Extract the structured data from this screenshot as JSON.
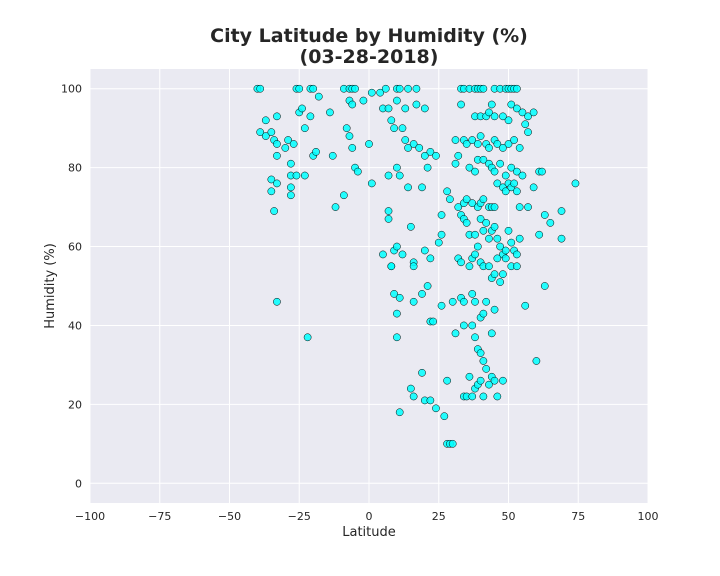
{
  "chart_data": {
    "type": "scatter",
    "title": "City Latitude by Humidity (%)",
    "subtitle": "(03-28-2018)",
    "xlabel": "Latitude",
    "ylabel": "Humidity (%)",
    "xlim": [
      -100,
      100
    ],
    "ylim": [
      -5,
      105
    ],
    "xticks": [
      -100,
      -75,
      -50,
      -25,
      0,
      25,
      50,
      75,
      100
    ],
    "yticks": [
      0,
      20,
      40,
      60,
      80,
      100
    ],
    "xtick_labels": [
      "−100",
      "−75",
      "−50",
      "−25",
      "0",
      "25",
      "50",
      "75",
      "100"
    ],
    "ytick_labels": [
      "0",
      "20",
      "40",
      "60",
      "80",
      "100"
    ],
    "grid": true,
    "background": "#eaeaf2",
    "point_color": "#00ffff",
    "point_edge_color": "#000000",
    "points": [
      [
        -40,
        100
      ],
      [
        -39,
        100
      ],
      [
        -26,
        100
      ],
      [
        -25,
        100
      ],
      [
        -21,
        100
      ],
      [
        -20,
        100
      ],
      [
        -9,
        100
      ],
      [
        -7,
        100
      ],
      [
        -6,
        100
      ],
      [
        -5,
        100
      ],
      [
        1,
        99
      ],
      [
        4,
        99
      ],
      [
        6,
        100
      ],
      [
        10,
        100
      ],
      [
        11,
        100
      ],
      [
        14,
        100
      ],
      [
        17,
        100
      ],
      [
        33,
        100
      ],
      [
        34,
        100
      ],
      [
        36,
        100
      ],
      [
        38,
        100
      ],
      [
        39,
        100
      ],
      [
        40,
        100
      ],
      [
        41,
        100
      ],
      [
        45,
        100
      ],
      [
        47,
        100
      ],
      [
        49,
        100
      ],
      [
        50,
        100
      ],
      [
        51,
        100
      ],
      [
        52,
        100
      ],
      [
        53,
        100
      ],
      [
        -37,
        92
      ],
      [
        -33,
        93
      ],
      [
        -25,
        94
      ],
      [
        -24,
        95
      ],
      [
        -21,
        93
      ],
      [
        -18,
        98
      ],
      [
        -14,
        94
      ],
      [
        -7,
        97
      ],
      [
        -6,
        96
      ],
      [
        -2,
        97
      ],
      [
        5,
        95
      ],
      [
        7,
        95
      ],
      [
        8,
        92
      ],
      [
        10,
        97
      ],
      [
        13,
        95
      ],
      [
        17,
        96
      ],
      [
        20,
        95
      ],
      [
        38,
        93
      ],
      [
        40,
        93
      ],
      [
        42,
        93
      ],
      [
        43,
        94
      ],
      [
        45,
        93
      ],
      [
        48,
        93
      ],
      [
        50,
        92
      ],
      [
        51,
        96
      ],
      [
        53,
        95
      ],
      [
        55,
        94
      ],
      [
        57,
        93
      ],
      [
        59,
        94
      ],
      [
        33,
        96
      ],
      [
        44,
        96
      ],
      [
        -39,
        89
      ],
      [
        -37,
        88
      ],
      [
        -35,
        89
      ],
      [
        -34,
        87
      ],
      [
        -33,
        86
      ],
      [
        -30,
        85
      ],
      [
        -29,
        87
      ],
      [
        -28,
        81
      ],
      [
        -27,
        86
      ],
      [
        -23,
        90
      ],
      [
        -20,
        83
      ],
      [
        -19,
        84
      ],
      [
        -13,
        83
      ],
      [
        -8,
        90
      ],
      [
        -7,
        88
      ],
      [
        -6,
        85
      ],
      [
        -5,
        80
      ],
      [
        -4,
        79
      ],
      [
        0,
        86
      ],
      [
        9,
        90
      ],
      [
        12,
        90
      ],
      [
        13,
        87
      ],
      [
        14,
        85
      ],
      [
        16,
        86
      ],
      [
        18,
        85
      ],
      [
        20,
        83
      ],
      [
        21,
        80
      ],
      [
        22,
        84
      ],
      [
        24,
        83
      ],
      [
        31,
        87
      ],
      [
        34,
        87
      ],
      [
        35,
        86
      ],
      [
        37,
        87
      ],
      [
        39,
        86
      ],
      [
        40,
        88
      ],
      [
        42,
        86
      ],
      [
        43,
        85
      ],
      [
        45,
        87
      ],
      [
        46,
        86
      ],
      [
        48,
        85
      ],
      [
        50,
        86
      ],
      [
        52,
        87
      ],
      [
        54,
        85
      ],
      [
        56,
        91
      ],
      [
        57,
        89
      ],
      [
        31,
        81
      ],
      [
        32,
        83
      ],
      [
        36,
        80
      ],
      [
        38,
        79
      ],
      [
        39,
        82
      ],
      [
        41,
        82
      ],
      [
        43,
        81
      ],
      [
        44,
        80
      ],
      [
        45,
        79
      ],
      [
        47,
        81
      ],
      [
        49,
        78
      ],
      [
        51,
        80
      ],
      [
        53,
        79
      ],
      [
        55,
        78
      ],
      [
        61,
        79
      ],
      [
        62,
        79
      ],
      [
        -33,
        83
      ],
      [
        -28,
        78
      ],
      [
        -26,
        78
      ],
      [
        -23,
        78
      ],
      [
        -12,
        70
      ],
      [
        -9,
        73
      ],
      [
        1,
        76
      ],
      [
        7,
        78
      ],
      [
        10,
        80
      ],
      [
        11,
        78
      ],
      [
        14,
        75
      ],
      [
        19,
        75
      ],
      [
        -35,
        77
      ],
      [
        -35,
        74
      ],
      [
        -33,
        76
      ],
      [
        -28,
        75
      ],
      [
        -28,
        73
      ],
      [
        -34,
        69
      ],
      [
        7,
        69
      ],
      [
        7,
        67
      ],
      [
        8,
        55
      ],
      [
        8,
        55
      ],
      [
        28,
        74
      ],
      [
        29,
        72
      ],
      [
        32,
        70
      ],
      [
        34,
        71
      ],
      [
        35,
        72
      ],
      [
        37,
        71
      ],
      [
        39,
        70
      ],
      [
        40,
        71
      ],
      [
        41,
        72
      ],
      [
        43,
        70
      ],
      [
        44,
        70
      ],
      [
        45,
        70
      ],
      [
        46,
        76
      ],
      [
        48,
        75
      ],
      [
        49,
        74
      ],
      [
        50,
        76
      ],
      [
        51,
        75
      ],
      [
        52,
        76
      ],
      [
        53,
        74
      ],
      [
        54,
        70
      ],
      [
        57,
        70
      ],
      [
        59,
        75
      ],
      [
        63,
        68
      ],
      [
        65,
        66
      ],
      [
        69,
        69
      ],
      [
        74,
        76
      ],
      [
        33,
        68
      ],
      [
        34,
        67
      ],
      [
        35,
        66
      ],
      [
        36,
        63
      ],
      [
        38,
        63
      ],
      [
        40,
        67
      ],
      [
        41,
        64
      ],
      [
        42,
        66
      ],
      [
        43,
        62
      ],
      [
        44,
        64
      ],
      [
        45,
        65
      ],
      [
        46,
        62
      ],
      [
        47,
        60
      ],
      [
        48,
        58
      ],
      [
        49,
        59
      ],
      [
        50,
        64
      ],
      [
        51,
        61
      ],
      [
        52,
        59
      ],
      [
        53,
        58
      ],
      [
        54,
        62
      ],
      [
        61,
        63
      ],
      [
        69,
        62
      ],
      [
        5,
        58
      ],
      [
        9,
        59
      ],
      [
        10,
        60
      ],
      [
        12,
        58
      ],
      [
        15,
        65
      ],
      [
        16,
        56
      ],
      [
        16,
        55
      ],
      [
        20,
        59
      ],
      [
        22,
        57
      ],
      [
        26,
        68
      ],
      [
        26,
        63
      ],
      [
        25,
        61
      ],
      [
        32,
        57
      ],
      [
        33,
        56
      ],
      [
        36,
        55
      ],
      [
        37,
        57
      ],
      [
        38,
        58
      ],
      [
        39,
        60
      ],
      [
        40,
        56
      ],
      [
        41,
        55
      ],
      [
        43,
        55
      ],
      [
        44,
        52
      ],
      [
        45,
        53
      ],
      [
        46,
        57
      ],
      [
        47,
        51
      ],
      [
        48,
        53
      ],
      [
        49,
        57
      ],
      [
        51,
        55
      ],
      [
        53,
        55
      ],
      [
        56,
        45
      ],
      [
        63,
        50
      ],
      [
        9,
        48
      ],
      [
        11,
        47
      ],
      [
        16,
        46
      ],
      [
        19,
        48
      ],
      [
        21,
        50
      ],
      [
        22,
        41
      ],
      [
        23,
        41
      ],
      [
        26,
        45
      ],
      [
        30,
        46
      ],
      [
        33,
        47
      ],
      [
        34,
        46
      ],
      [
        37,
        48
      ],
      [
        38,
        46
      ],
      [
        40,
        42
      ],
      [
        41,
        43
      ],
      [
        42,
        46
      ],
      [
        44,
        38
      ],
      [
        45,
        44
      ],
      [
        -33,
        46
      ],
      [
        -22,
        37
      ],
      [
        10,
        43
      ],
      [
        10,
        37
      ],
      [
        31,
        38
      ],
      [
        34,
        40
      ],
      [
        37,
        40
      ],
      [
        38,
        37
      ],
      [
        39,
        34
      ],
      [
        40,
        33
      ],
      [
        41,
        31
      ],
      [
        42,
        29
      ],
      [
        43,
        25
      ],
      [
        44,
        27
      ],
      [
        45,
        26
      ],
      [
        46,
        22
      ],
      [
        48,
        26
      ],
      [
        60,
        31
      ],
      [
        15,
        24
      ],
      [
        16,
        22
      ],
      [
        19,
        28
      ],
      [
        20,
        21
      ],
      [
        22,
        21
      ],
      [
        24,
        19
      ],
      [
        27,
        17
      ],
      [
        28,
        26
      ],
      [
        34,
        22
      ],
      [
        35,
        22
      ],
      [
        36,
        27
      ],
      [
        37,
        22
      ],
      [
        38,
        24
      ],
      [
        39,
        25
      ],
      [
        40,
        26
      ],
      [
        41,
        22
      ],
      [
        11,
        18
      ],
      [
        28,
        10
      ],
      [
        29,
        10
      ],
      [
        30,
        10
      ]
    ]
  }
}
